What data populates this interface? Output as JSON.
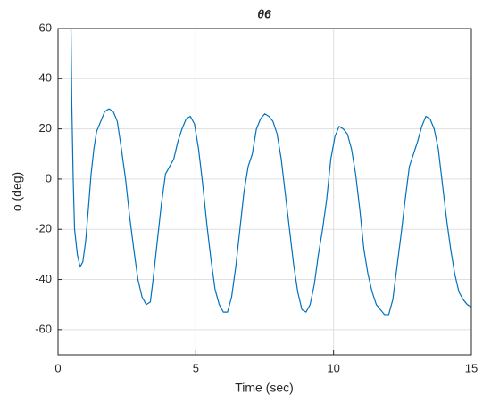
{
  "chart_data": {
    "type": "line",
    "title": "θ6",
    "xlabel": "Time (sec)",
    "ylabel": "o (deg)",
    "x": [
      0.47,
      0.5,
      0.55,
      0.6,
      0.7,
      0.8,
      0.9,
      1.0,
      1.1,
      1.2,
      1.3,
      1.4,
      1.55,
      1.7,
      1.85,
      2.0,
      2.15,
      2.3,
      2.45,
      2.6,
      2.75,
      2.9,
      3.05,
      3.2,
      3.35,
      3.45,
      3.6,
      3.75,
      3.9,
      4.05,
      4.2,
      4.35,
      4.5,
      4.65,
      4.8,
      4.95,
      5.1,
      5.25,
      5.4,
      5.55,
      5.7,
      5.85,
      6.0,
      6.15,
      6.3,
      6.45,
      6.6,
      6.75,
      6.9,
      7.05,
      7.2,
      7.35,
      7.5,
      7.65,
      7.8,
      7.95,
      8.1,
      8.25,
      8.4,
      8.55,
      8.7,
      8.85,
      9.0,
      9.15,
      9.3,
      9.45,
      9.6,
      9.75,
      9.9,
      10.05,
      10.2,
      10.35,
      10.5,
      10.65,
      10.8,
      10.95,
      11.1,
      11.25,
      11.4,
      11.55,
      11.7,
      11.85,
      12.0,
      12.15,
      12.3,
      12.45,
      12.6,
      12.75,
      12.9,
      13.05,
      13.2,
      13.35,
      13.5,
      13.65,
      13.8,
      13.95,
      14.1,
      14.25,
      14.4,
      14.55,
      14.7,
      14.85,
      15.0
    ],
    "values": [
      60,
      30,
      0,
      -20,
      -30,
      -35,
      -33,
      -25,
      -12,
      2,
      12,
      19,
      23,
      27,
      28,
      27,
      23,
      12,
      0,
      -15,
      -28,
      -40,
      -47,
      -50,
      -49,
      -40,
      -25,
      -10,
      2,
      5,
      8,
      15,
      20,
      24,
      25,
      22,
      12,
      -2,
      -18,
      -32,
      -44,
      -50,
      -53,
      -53,
      -47,
      -35,
      -20,
      -5,
      5,
      10,
      20,
      24,
      26,
      25,
      23,
      18,
      8,
      -6,
      -20,
      -34,
      -45,
      -52,
      -53,
      -50,
      -42,
      -30,
      -20,
      -8,
      8,
      17,
      21,
      20,
      18,
      12,
      2,
      -12,
      -28,
      -38,
      -45,
      -50,
      -52,
      -54,
      -54,
      -48,
      -35,
      -22,
      -8,
      5,
      10,
      15,
      21,
      25,
      24,
      20,
      12,
      -2,
      -16,
      -28,
      -38,
      -45,
      -48,
      -50,
      -51
    ],
    "color": "#0072bd",
    "xlim": [
      0,
      15
    ],
    "xticks": [
      0,
      5,
      10,
      15
    ],
    "ylim": [
      -70,
      60
    ],
    "yticks": [
      -60,
      -40,
      -20,
      0,
      20,
      40,
      60
    ],
    "grid": true
  }
}
